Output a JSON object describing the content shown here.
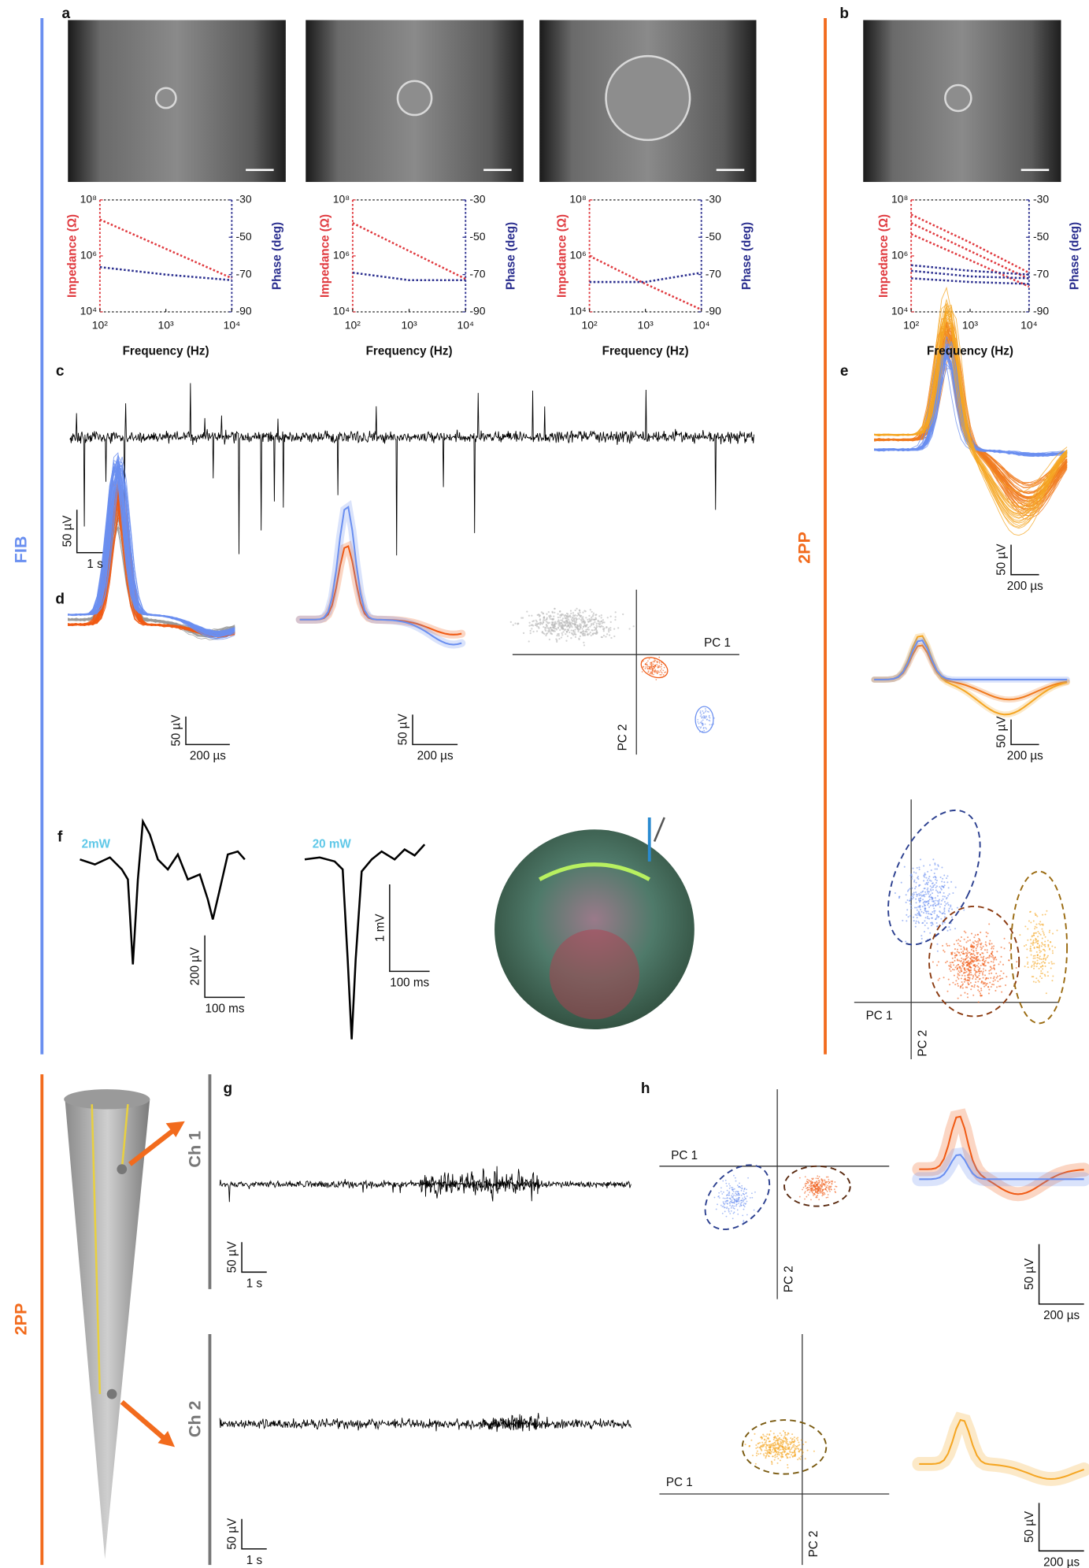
{
  "side_labels": {
    "fib": "FIB",
    "pp_right": "2PP",
    "pp_bottom": "2PP"
  },
  "panel_labels": [
    "a",
    "b",
    "c",
    "d",
    "e",
    "f",
    "g",
    "h"
  ],
  "chart_data": [
    {
      "type": "line",
      "xlabel": "Frequency (Hz)",
      "ylabel": "Impedance (Ω)",
      "y2label": "Phase (deg)",
      "log_x": true,
      "log_y": true,
      "linestyle": "dotted",
      "x": [
        100,
        1000,
        10000
      ],
      "xlim": [
        100,
        10000
      ],
      "xticks": [
        {
          "value": 100,
          "label": "10²"
        },
        {
          "value": 1000,
          "label": "10³"
        },
        {
          "value": 10000,
          "label": "10⁴"
        }
      ],
      "ylim": [
        10000,
        100000000
      ],
      "yticks": [
        {
          "value": 10000,
          "label": "10⁴"
        },
        {
          "value": 1000000,
          "label": "10⁶"
        },
        {
          "value": 100000000,
          "label": "10⁸"
        }
      ],
      "y2lim": [
        -90,
        -30
      ],
      "y2ticks": [
        -30,
        -50,
        -70,
        -90
      ],
      "series": [
        {
          "color": "#e0393e",
          "values": [
            20000000,
            1800000,
            160000
          ]
        },
        {
          "color": "#2b2f8f",
          "axis": "y2",
          "values": [
            -66,
            -70,
            -73
          ]
        }
      ]
    },
    {
      "type": "line",
      "xlabel": "Frequency (Hz)",
      "ylabel": "Impedance (Ω)",
      "y2label": "Phase (deg)",
      "log_x": true,
      "log_y": true,
      "linestyle": "dotted",
      "x": [
        100,
        1000,
        10000
      ],
      "xlim": [
        100,
        10000
      ],
      "xticks": [
        {
          "value": 100,
          "label": "10²"
        },
        {
          "value": 1000,
          "label": "10³"
        },
        {
          "value": 10000,
          "label": "10⁴"
        }
      ],
      "ylim": [
        10000,
        100000000
      ],
      "yticks": [
        {
          "value": 10000,
          "label": "10⁴"
        },
        {
          "value": 1000000,
          "label": "10⁶"
        },
        {
          "value": 100000000,
          "label": "10⁸"
        }
      ],
      "y2lim": [
        -90,
        -30
      ],
      "y2ticks": [
        -30,
        -50,
        -70,
        -90
      ],
      "series": [
        {
          "color": "#e0393e",
          "values": [
            15000000,
            1500000,
            150000
          ]
        },
        {
          "color": "#2b2f8f",
          "axis": "y2",
          "values": [
            -69,
            -73,
            -73
          ]
        }
      ]
    },
    {
      "type": "line",
      "xlabel": "Frequency (Hz)",
      "ylabel": "Impedance (Ω)",
      "y2label": "Phase (deg)",
      "log_x": true,
      "log_y": true,
      "linestyle": "dotted",
      "x": [
        100,
        1000,
        10000
      ],
      "xlim": [
        100,
        10000
      ],
      "xticks": [
        {
          "value": 100,
          "label": "10²"
        },
        {
          "value": 1000,
          "label": "10³"
        },
        {
          "value": 10000,
          "label": "10⁴"
        }
      ],
      "ylim": [
        10000,
        100000000
      ],
      "yticks": [
        {
          "value": 10000,
          "label": "10⁴"
        },
        {
          "value": 1000000,
          "label": "10⁶"
        },
        {
          "value": 100000000,
          "label": "10⁸"
        }
      ],
      "y2lim": [
        -90,
        -30
      ],
      "y2ticks": [
        -30,
        -50,
        -70,
        -90
      ],
      "series": [
        {
          "color": "#e0393e",
          "values": [
            1000000,
            100000,
            12000
          ]
        },
        {
          "color": "#2b2f8f",
          "axis": "y2",
          "values": [
            -74,
            -74,
            -69
          ]
        }
      ]
    },
    {
      "type": "line",
      "xlabel": "Frequency (Hz)",
      "ylabel": "Impedance (Ω)",
      "y2label": "Phase (deg)",
      "log_x": true,
      "log_y": true,
      "linestyle": "dotted",
      "x": [
        100,
        1000,
        10000
      ],
      "xlim": [
        100,
        10000
      ],
      "xticks": [
        {
          "value": 100,
          "label": "10²"
        },
        {
          "value": 1000,
          "label": "10³"
        },
        {
          "value": 10000,
          "label": "10⁴"
        }
      ],
      "ylim": [
        10000,
        100000000
      ],
      "yticks": [
        {
          "value": 10000,
          "label": "10⁴"
        },
        {
          "value": 1000000,
          "label": "10⁶"
        },
        {
          "value": 100000000,
          "label": "10⁸"
        }
      ],
      "y2lim": [
        -90,
        -30
      ],
      "y2ticks": [
        -30,
        -50,
        -70,
        -90
      ],
      "series": [
        {
          "color": "#e0393e",
          "values": [
            30000000,
            3000000,
            250000
          ]
        },
        {
          "color": "#e0393e",
          "values": [
            15000000,
            1500000,
            150000
          ]
        },
        {
          "color": "#e0393e",
          "values": [
            6000000,
            700000,
            80000
          ]
        },
        {
          "color": "#2b2f8f",
          "axis": "y2",
          "values": [
            -65,
            -68,
            -70
          ]
        },
        {
          "color": "#2b2f8f",
          "axis": "y2",
          "values": [
            -68,
            -71,
            -72
          ]
        },
        {
          "color": "#2b2f8f",
          "axis": "y2",
          "values": [
            -72,
            -74,
            -75
          ]
        }
      ]
    }
  ],
  "c": {
    "scale_v": "50 µV",
    "scale_h": "1 s"
  },
  "d": {
    "waveforms": {
      "scale_v": "50 µV",
      "scale_h": "200 µs"
    },
    "means": {
      "scale_v": "50 µV",
      "scale_h": "200 µs"
    },
    "pca": {
      "pc1": "PC 1",
      "pc2": "PC 2"
    }
  },
  "e": {
    "waveforms": {
      "scale_v": "50 µV",
      "scale_h": "200 µs"
    },
    "means": {
      "scale_v": "50 µV",
      "scale_h": "200 µs"
    },
    "pca": {
      "pc1": "PC 1",
      "pc2": "PC 2"
    }
  },
  "f": {
    "power1": "2mW",
    "power2": "20 mW",
    "trace1": {
      "scale_v": "200 µV",
      "scale_h": "100 ms"
    },
    "trace2": {
      "scale_v": "1 mV",
      "scale_h": "100 ms"
    }
  },
  "g": {
    "channels": [
      {
        "label": "Ch 1",
        "scale_v": "50 µV",
        "scale_h": "1 s"
      },
      {
        "label": "Ch 2",
        "scale_v": "50 µV",
        "scale_h": "1 s"
      }
    ]
  },
  "h": {
    "rows": [
      {
        "pca": {
          "pc1": "PC 1",
          "pc2": "PC 2"
        },
        "waveform": {
          "scale_v": "50 µV",
          "scale_h": "200 µs"
        }
      },
      {
        "pca": {
          "pc1": "PC 1",
          "pc2": "PC 2"
        },
        "waveform": {
          "scale_v": "50 µV",
          "scale_h": "200 µs"
        }
      }
    ]
  }
}
